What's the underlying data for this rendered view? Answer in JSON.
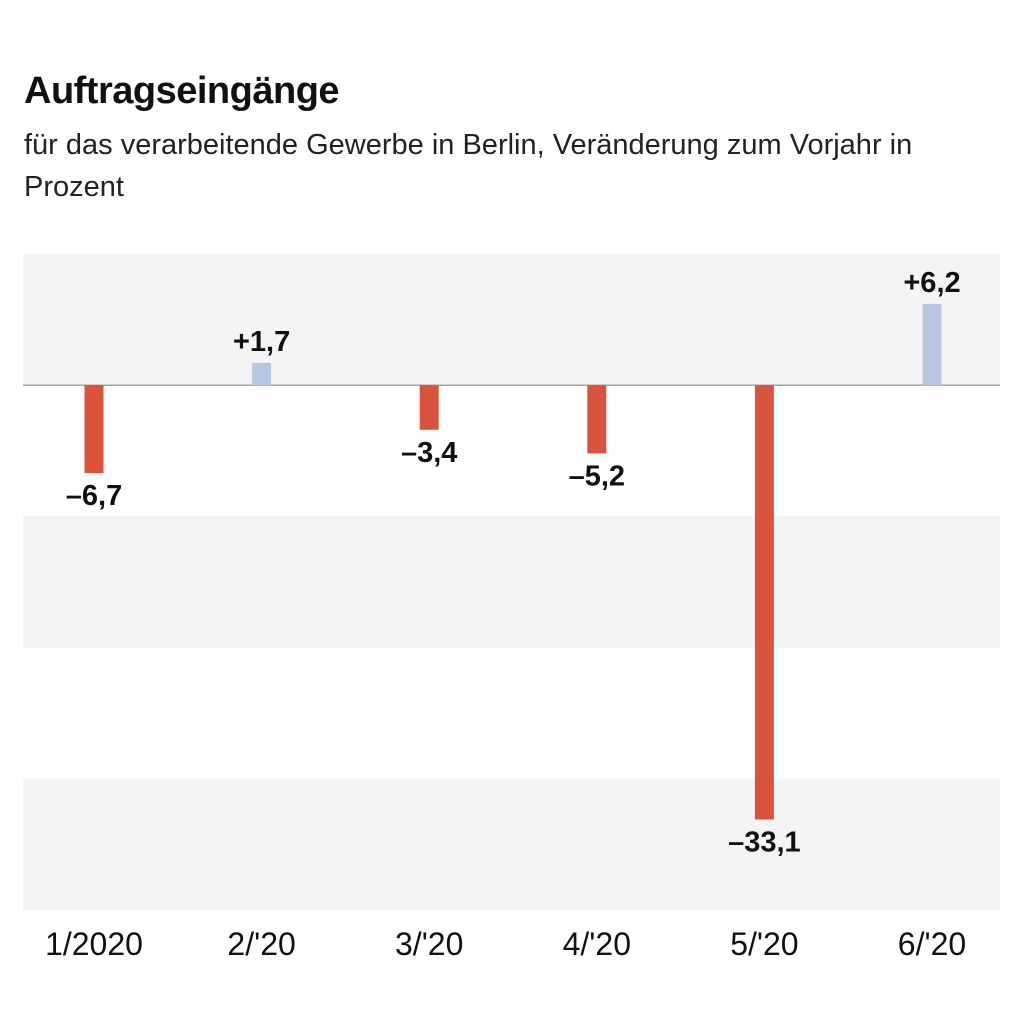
{
  "chart_data": {
    "type": "bar",
    "title": "Auftragseingänge",
    "subtitle": "für das verarbeitende Gewerbe in Berlin, Veränderung zum Vorjahr in Prozent",
    "categories": [
      "1/2020",
      "2/'20",
      "3/'20",
      "4/'20",
      "5/'20",
      "6/'20"
    ],
    "values": [
      -6.7,
      1.7,
      -3.4,
      -5.2,
      -33.1,
      6.2
    ],
    "value_labels": [
      "–6,7",
      "+1,7",
      "–3,4",
      "–5,2",
      "–33,1",
      "+6,2"
    ],
    "ylim": [
      -40,
      10
    ],
    "grid": "alternating horizontal bands",
    "colors": {
      "negative": "#d9533f",
      "positive": "#b8c5e3",
      "band": "#f4f4f4",
      "zero_line": "#888888"
    }
  }
}
